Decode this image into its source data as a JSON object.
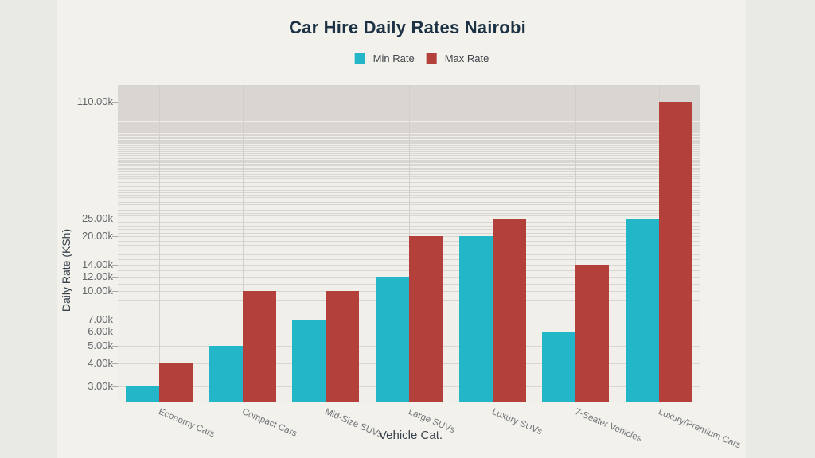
{
  "page": {
    "background_outer": "#e9eae3",
    "background_inner": "#f2f1ec"
  },
  "chart_data": {
    "type": "bar",
    "title": "Car Hire Daily Rates Nairobi",
    "title_color": "#1d3244",
    "xlabel": "Vehicle Cat.",
    "ylabel": "Daily Rate (KSh)",
    "yscale": "log",
    "ylim": [
      2450,
      136000
    ],
    "grid": true,
    "grid_color": "#d9d6d1",
    "legend_position": "top-center",
    "categories": [
      "Economy Cars",
      "Compact Cars",
      "Mid-Size SUVs",
      "Large SUVs",
      "Luxury SUVs",
      "7-Seater Vehicles",
      "Luxury/Premium Cars"
    ],
    "series": [
      {
        "name": "Min Rate",
        "color": "#23b5c8",
        "values": [
          3000,
          5000,
          7000,
          12000,
          20000,
          6000,
          25000
        ]
      },
      {
        "name": "Max Rate",
        "color": "#b4403c",
        "values": [
          4000,
          10000,
          10000,
          20000,
          25000,
          14000,
          110000
        ]
      }
    ],
    "y_ticks": {
      "values": [
        3000,
        4000,
        5000,
        6000,
        7000,
        10000,
        12000,
        14000,
        20000,
        25000,
        110000
      ],
      "labels": [
        "3.00k",
        "4.00k",
        "5.00k",
        "6.00k",
        "7.00k",
        "10.00k",
        "12.00k",
        "14.00k",
        "20.00k",
        "25.00k",
        "110.00k"
      ]
    },
    "minor_grid_step": 1000,
    "minor_grid_start": 3000
  }
}
